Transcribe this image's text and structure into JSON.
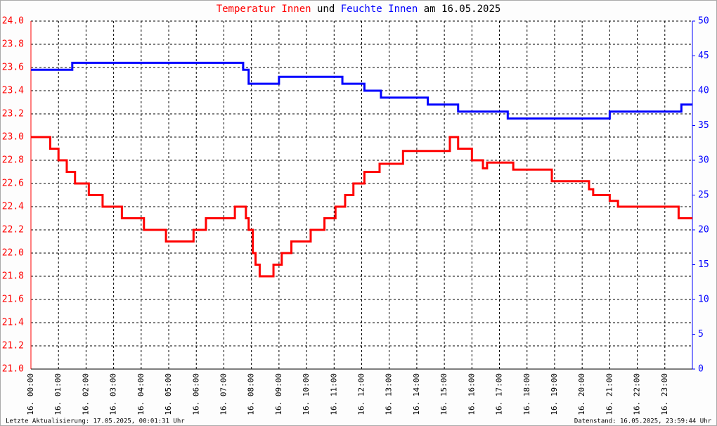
{
  "chart_data": {
    "type": "line",
    "title_connector": "und",
    "title_suffix": "am 16.05.2025",
    "footer_left": "Letzte Aktualisierung: 17.05.2025, 00:01:31 Uhr",
    "footer_right": "Datenstand: 16.05.2025, 23:59:44 Uhr",
    "grid": true,
    "step": true,
    "xlim": [
      0,
      24
    ],
    "xticks": [
      {
        "value": 0,
        "label": "16. 00:00"
      },
      {
        "value": 1,
        "label": "16. 01:00"
      },
      {
        "value": 2,
        "label": "16. 02:00"
      },
      {
        "value": 3,
        "label": "16. 03:00"
      },
      {
        "value": 4,
        "label": "16. 04:00"
      },
      {
        "value": 5,
        "label": "16. 05:00"
      },
      {
        "value": 6,
        "label": "16. 06:00"
      },
      {
        "value": 7,
        "label": "16. 07:00"
      },
      {
        "value": 8,
        "label": "16. 08:00"
      },
      {
        "value": 9,
        "label": "16. 09:00"
      },
      {
        "value": 10,
        "label": "16. 10:00"
      },
      {
        "value": 11,
        "label": "16. 11:00"
      },
      {
        "value": 12,
        "label": "16. 12:00"
      },
      {
        "value": 13,
        "label": "16. 13:00"
      },
      {
        "value": 14,
        "label": "16. 14:00"
      },
      {
        "value": 15,
        "label": "16. 15:00"
      },
      {
        "value": 16,
        "label": "16. 16:00"
      },
      {
        "value": 17,
        "label": "16. 17:00"
      },
      {
        "value": 18,
        "label": "16. 18:00"
      },
      {
        "value": 19,
        "label": "16. 19:00"
      },
      {
        "value": 20,
        "label": "16. 20:00"
      },
      {
        "value": 21,
        "label": "16. 21:00"
      },
      {
        "value": 22,
        "label": "16. 22:00"
      },
      {
        "value": 23,
        "label": "16. 23:00"
      }
    ],
    "ylim": [
      21,
      24
    ],
    "yticks": [
      {
        "value": 21,
        "label": "21.0"
      },
      21.2,
      21.4,
      21.6,
      21.8,
      {
        "value": 22,
        "label": "22.0"
      },
      22.2,
      22.4,
      22.6,
      22.8,
      {
        "value": 23,
        "label": "23.0"
      },
      23.2,
      23.4,
      23.6,
      23.8,
      {
        "value": 24,
        "label": "24.0"
      }
    ],
    "y2lim": [
      0,
      50
    ],
    "y2ticks": [
      0,
      5,
      10,
      15,
      20,
      25,
      30,
      35,
      40,
      45,
      50
    ],
    "series": [
      {
        "name": "Temperatur Innen",
        "color": "#ff0000",
        "x": [
          0,
          0.7,
          1.0,
          1.3,
          1.6,
          2.1,
          2.6,
          3.3,
          4.1,
          4.9,
          5.9,
          6.35,
          7.4,
          7.8,
          7.9,
          8.05,
          8.15,
          8.3,
          8.8,
          9.1,
          9.45,
          10.15,
          10.65,
          11.05,
          11.4,
          11.7,
          12.1,
          12.65,
          13.5,
          15.2,
          15.5,
          16.0,
          16.4,
          16.55,
          17.5,
          18.9,
          20.25,
          20.4,
          21.0,
          21.3,
          23.5,
          24
        ],
        "values": [
          23.0,
          22.9,
          22.8,
          22.7,
          22.6,
          22.5,
          22.4,
          22.3,
          22.2,
          22.1,
          22.2,
          22.3,
          22.4,
          22.3,
          22.2,
          22.0,
          21.9,
          21.8,
          21.9,
          22.0,
          22.1,
          22.2,
          22.3,
          22.4,
          22.5,
          22.6,
          22.7,
          22.77,
          22.88,
          23.0,
          22.9,
          22.8,
          22.73,
          22.78,
          22.72,
          22.62,
          22.55,
          22.5,
          22.45,
          22.4,
          22.3,
          22.3
        ]
      },
      {
        "name": "Feuchte Innen",
        "color": "#0000ff",
        "axis": "y2",
        "x": [
          0,
          1.5,
          7.7,
          7.9,
          9.0,
          11.3,
          12.1,
          12.7,
          14.4,
          15.5,
          17.3,
          21.0,
          23.6,
          24
        ],
        "values": [
          43,
          44,
          43,
          41,
          42,
          41,
          40,
          39,
          38,
          37,
          36,
          37,
          38,
          38
        ]
      }
    ]
  }
}
